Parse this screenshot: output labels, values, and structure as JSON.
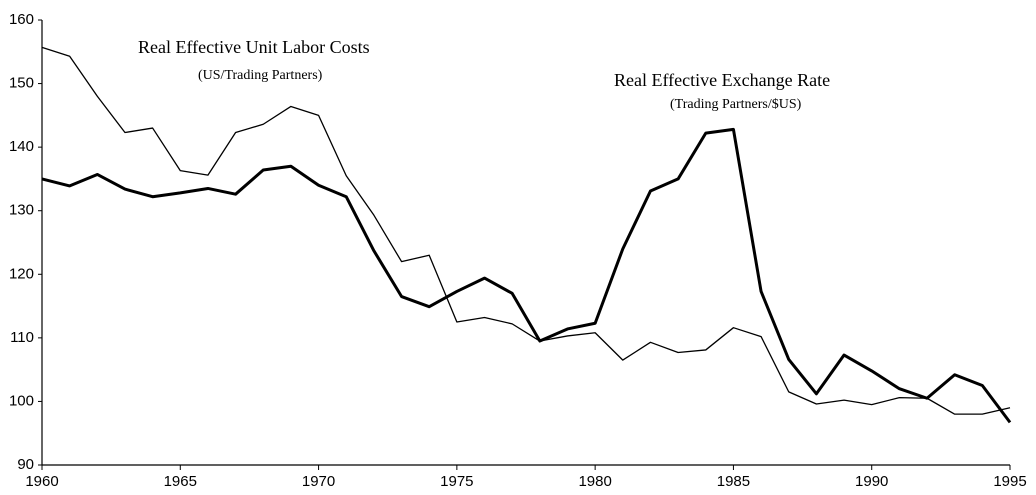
{
  "chart_data": {
    "type": "line",
    "x": [
      1960,
      1961,
      1962,
      1963,
      1964,
      1965,
      1966,
      1967,
      1968,
      1969,
      1970,
      1971,
      1972,
      1973,
      1974,
      1975,
      1976,
      1977,
      1978,
      1979,
      1980,
      1981,
      1982,
      1983,
      1984,
      1985,
      1986,
      1987,
      1988,
      1989,
      1990,
      1991,
      1992,
      1993,
      1994,
      1995
    ],
    "xlim": [
      1960,
      1995
    ],
    "xticks": [
      1960,
      1965,
      1970,
      1975,
      1980,
      1985,
      1990,
      1995
    ],
    "ylim": [
      90,
      160
    ],
    "yticks": [
      90,
      100,
      110,
      120,
      130,
      140,
      150,
      160
    ],
    "series": [
      {
        "name": "Real Effective Unit Labor Costs",
        "note": "(US/Trading Partners)",
        "color": "#000000",
        "values": [
          155.7,
          154.3,
          148,
          142.3,
          143,
          136.3,
          135.6,
          142.3,
          143.6,
          146.4,
          145,
          135.5,
          129.3,
          122,
          123,
          112.5,
          113.2,
          112.2,
          109.5,
          110.3,
          110.8,
          106.5,
          109.3,
          107.7,
          108.1,
          111.6,
          110.2,
          101.5,
          99.6,
          100.2,
          99.5,
          100.6,
          100.5,
          98,
          98,
          99
        ]
      },
      {
        "name": "Real Effective Exchange Rate",
        "note": "(Trading Partners/$US)",
        "color": "#000000",
        "values": [
          135,
          133.9,
          135.7,
          133.4,
          132.2,
          132.8,
          133.5,
          132.6,
          136.4,
          137,
          134,
          132.2,
          123.7,
          116.5,
          114.9,
          117.3,
          119.4,
          117,
          109.5,
          111.4,
          112.3,
          124,
          133.1,
          135,
          142.2,
          142.8,
          117.3,
          106.6,
          101.2,
          107.3,
          104.8,
          102,
          100.5,
          104.2,
          102.5,
          96.7
        ]
      }
    ]
  }
}
